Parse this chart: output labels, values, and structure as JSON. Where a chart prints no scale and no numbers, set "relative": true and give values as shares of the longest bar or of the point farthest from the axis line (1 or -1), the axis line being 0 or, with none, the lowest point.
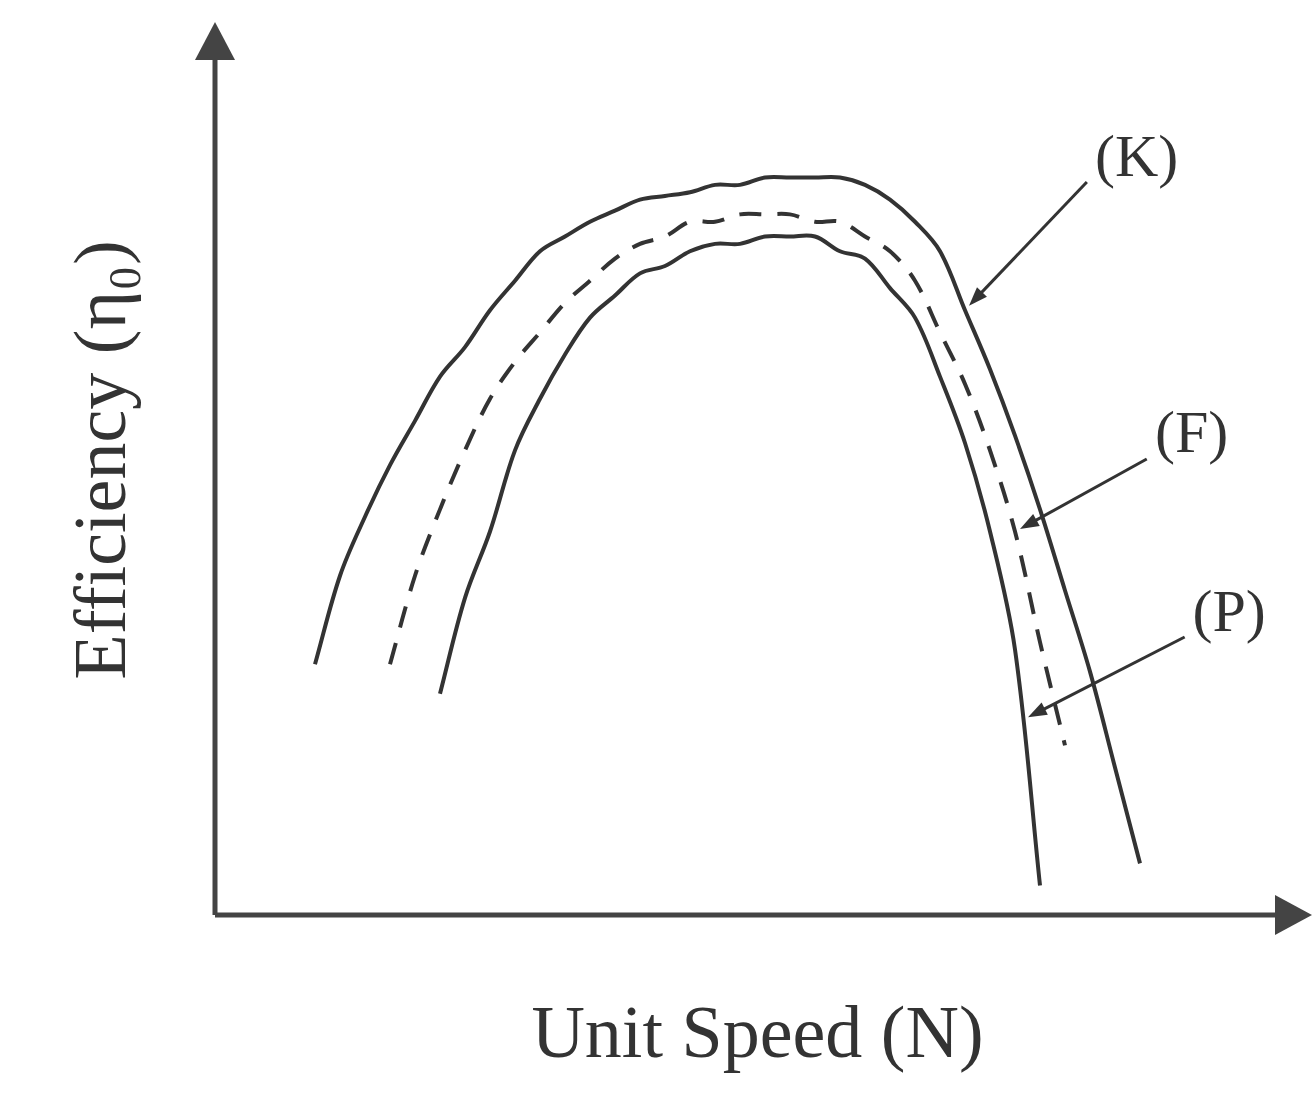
{
  "chart_data": {
    "type": "line",
    "relative": true,
    "xlabel": "Unit Speed (N)",
    "ylabel": "Efficiency (η₀)",
    "legend": false,
    "grid": false,
    "marker": "none",
    "categories": [
      null,
      null,
      null,
      null,
      null,
      null,
      null,
      null,
      null,
      null,
      null,
      null,
      null,
      null,
      null,
      null,
      null,
      null,
      null,
      null,
      null,
      null,
      null,
      null,
      null,
      null,
      null,
      null,
      null,
      null,
      null,
      null,
      null,
      null,
      null,
      null,
      null,
      null,
      null,
      null,
      null,
      null,
      null,
      null
    ],
    "series": [
      {
        "name": "(K)",
        "color": "#333333",
        "line_style": "solid",
        "values": [
          null,
          null,
          null,
          null,
          0.34,
          0.46,
          0.54,
          0.61,
          0.67,
          0.73,
          0.77,
          0.82,
          0.86,
          0.9,
          0.92,
          0.94,
          0.955,
          0.97,
          0.975,
          0.98,
          0.99,
          0.99,
          1,
          1,
          1,
          1,
          0.99,
          0.97,
          0.94,
          0.9,
          0.82,
          0.74,
          0.65,
          0.55,
          0.44,
          0.33,
          0.2,
          0.07,
          null,
          null,
          null,
          null,
          null,
          null
        ]
      },
      {
        "name": "(F)",
        "color": "#333333",
        "line_style": "dashed",
        "values": [
          null,
          null,
          null,
          null,
          null,
          null,
          null,
          0.34,
          0.46,
          0.55,
          0.63,
          0.7,
          0.75,
          0.79,
          0.83,
          0.86,
          0.89,
          0.91,
          0.92,
          0.94,
          0.94,
          0.95,
          0.95,
          0.95,
          0.94,
          0.94,
          0.92,
          0.9,
          0.86,
          0.79,
          0.72,
          0.63,
          0.52,
          0.37,
          0.23,
          null,
          null,
          null,
          null,
          null,
          null,
          null,
          null,
          null
        ]
      },
      {
        "name": "(P)",
        "color": "#333333",
        "line_style": "solid",
        "values": [
          null,
          null,
          null,
          null,
          null,
          null,
          null,
          null,
          null,
          0.3,
          0.43,
          0.52,
          0.63,
          0.7,
          0.76,
          0.81,
          0.84,
          0.87,
          0.88,
          0.9,
          0.91,
          0.91,
          0.92,
          0.92,
          0.92,
          0.9,
          0.89,
          0.85,
          0.81,
          0.73,
          0.64,
          0.52,
          0.36,
          0.04,
          null,
          null,
          null,
          null,
          null,
          null,
          null,
          null,
          null,
          null
        ]
      }
    ]
  }
}
